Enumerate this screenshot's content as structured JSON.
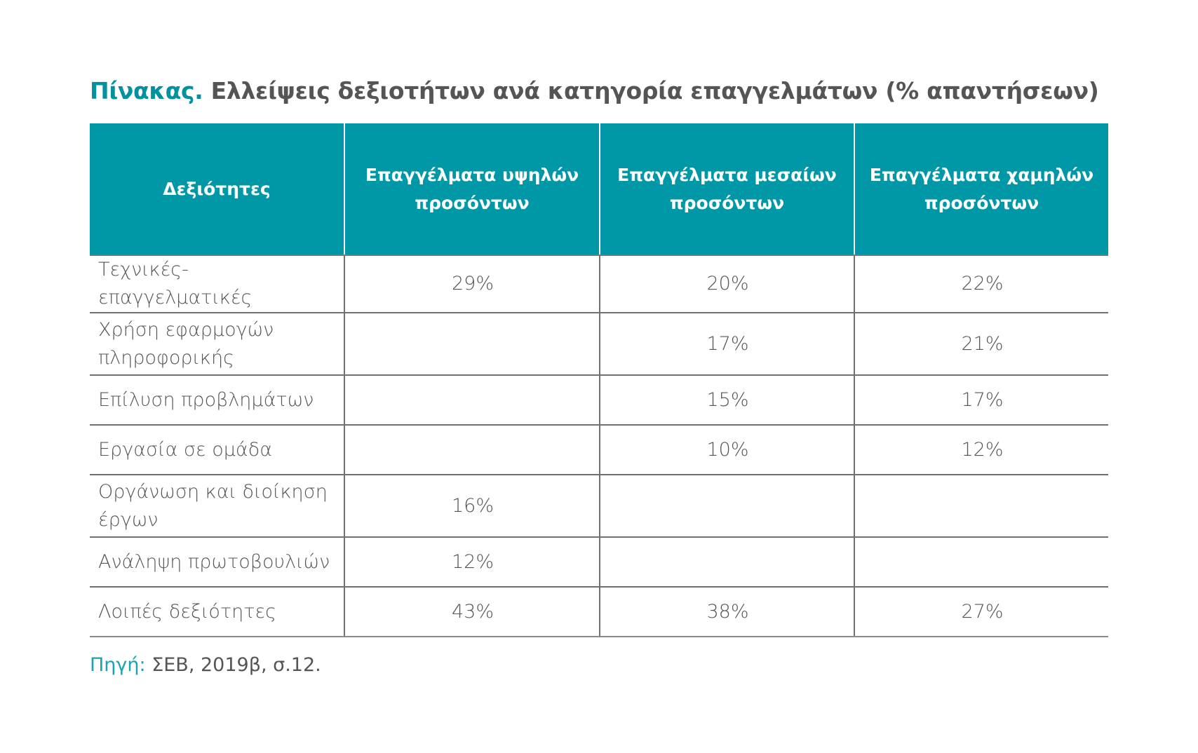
{
  "title": {
    "lead": "Πίνακας.",
    "text": " Ελλείψεις δεξιοτήτων ανά κατηγορία επαγγελμάτων (% απαντήσεων)"
  },
  "colors": {
    "header_bg": "#0098a6",
    "accent_text": "#00929f",
    "body_text": "#555555"
  },
  "table": {
    "headers": [
      "Δεξιότητες",
      "Επαγγέλματα υψηλών προσόντων",
      "Επαγγέλματα μεσαίων προσόντων",
      "Επαγγέλματα χαμηλών προσόντων"
    ],
    "rows": [
      {
        "skill": "Τεχνικές-επαγγελματικές",
        "high": "29%",
        "mid": "20%",
        "low": "22%"
      },
      {
        "skill": "Χρήση εφαρμογών πληροφορικής",
        "high": "",
        "mid": "17%",
        "low": "21%"
      },
      {
        "skill": "Επίλυση προβλημάτων",
        "high": "",
        "mid": "15%",
        "low": "17%"
      },
      {
        "skill": "Εργασία σε ομάδα",
        "high": "",
        "mid": "10%",
        "low": "12%"
      },
      {
        "skill": "Οργάνωση και διοίκηση έργων",
        "high": "16%",
        "mid": "",
        "low": ""
      },
      {
        "skill": "Ανάληψη πρωτοβουλιών",
        "high": "12%",
        "mid": "",
        "low": ""
      },
      {
        "skill": "Λοιπές δεξιότητες",
        "high": "43%",
        "mid": "38%",
        "low": "27%"
      }
    ]
  },
  "source": {
    "lead": "Πηγή:",
    "text": " ΣΕΒ, 2019β, σ.12."
  }
}
